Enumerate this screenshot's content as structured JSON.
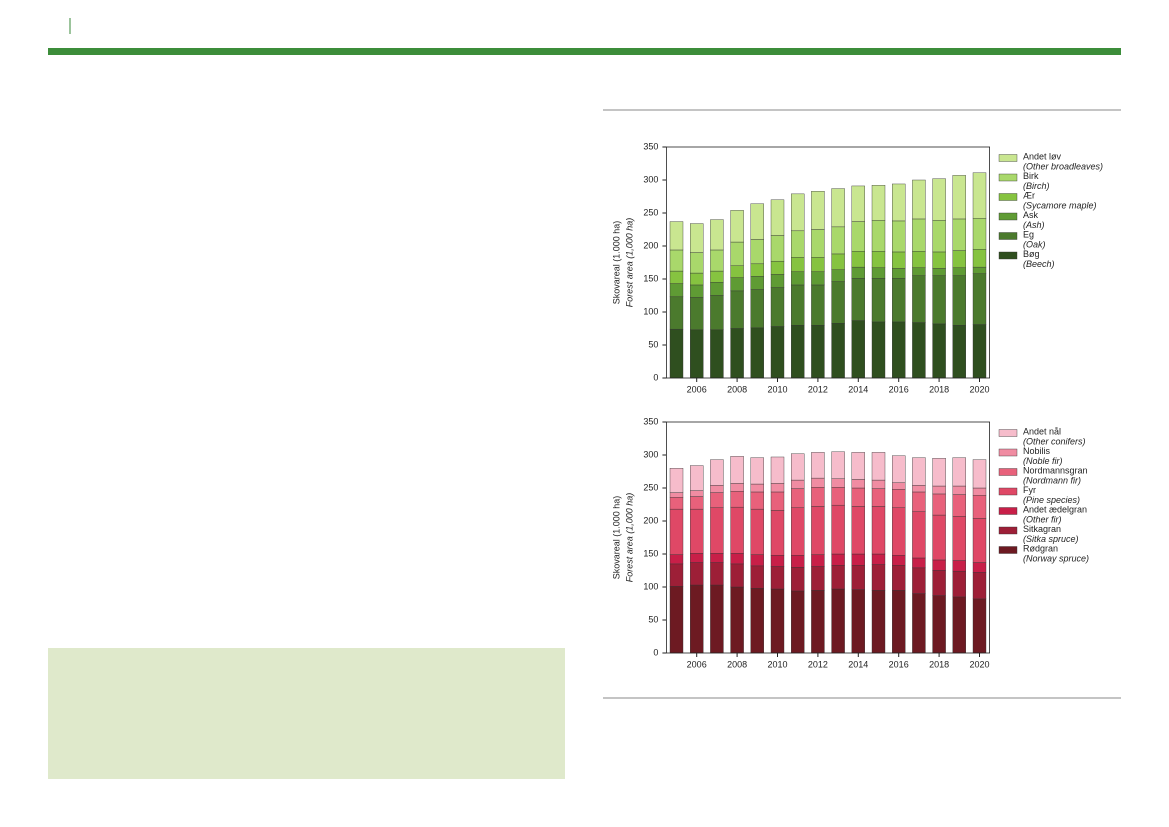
{
  "chart_data": [
    {
      "type": "stacked-bar",
      "ylabel": "Skovareal (1.000 ha)",
      "ylabel_en": "Forest area (1,000 ha)",
      "categories": [
        null,
        "2006",
        null,
        "2008",
        null,
        "2010",
        null,
        "2012",
        null,
        "2014",
        null,
        "2016",
        null,
        "2018",
        null,
        "2020"
      ],
      "ylim": [
        0,
        350
      ],
      "yticks": [
        0,
        50,
        100,
        150,
        200,
        250,
        300,
        350
      ],
      "series": [
        {
          "name": "Bøg",
          "name_en": "(Beech)",
          "color": "#2f4f1f",
          "values": [
            74,
            73,
            73,
            75,
            76,
            78,
            80,
            80,
            83,
            87,
            85,
            85,
            84,
            82,
            80,
            81
          ]
        },
        {
          "name": "Eg",
          "name_en": "(Oak)",
          "color": "#4b7a2d",
          "values": [
            49,
            49,
            52,
            57,
            58,
            59,
            61,
            61,
            63,
            64,
            66,
            66,
            71,
            73,
            75,
            77
          ]
        },
        {
          "name": "Ask",
          "name_en": "(Ash)",
          "color": "#5f9b34",
          "values": [
            20,
            19,
            20,
            20,
            20,
            20,
            20,
            20,
            18,
            17,
            16,
            15,
            12,
            11,
            12,
            10
          ]
        },
        {
          "name": "Ær",
          "name_en": "(Sycamore maple)",
          "color": "#86c340",
          "values": [
            19,
            18,
            17,
            18,
            19,
            20,
            22,
            22,
            24,
            24,
            25,
            25,
            25,
            25,
            26,
            27
          ]
        },
        {
          "name": "Birk",
          "name_en": "(Birch)",
          "color": "#a9d86b",
          "values": [
            32,
            31,
            32,
            36,
            37,
            39,
            40,
            42,
            41,
            45,
            47,
            47,
            49,
            48,
            48,
            47
          ]
        },
        {
          "name": "Andet løv",
          "name_en": "(Other broadleaves)",
          "color": "#c9e690",
          "values": [
            43,
            44,
            46,
            48,
            54,
            54,
            56,
            58,
            58,
            54,
            53,
            56,
            59,
            63,
            66,
            69
          ]
        }
      ]
    },
    {
      "type": "stacked-bar",
      "ylabel": "Skovareal (1.000 ha)",
      "ylabel_en": "Forest area (1,000 ha)",
      "categories": [
        null,
        "2006",
        null,
        "2008",
        null,
        "2010",
        null,
        "2012",
        null,
        "2014",
        null,
        "2016",
        null,
        "2018",
        null,
        "2020"
      ],
      "ylim": [
        0,
        350
      ],
      "yticks": [
        0,
        50,
        100,
        150,
        200,
        250,
        300,
        350
      ],
      "series": [
        {
          "name": "Rødgran",
          "name_en": "(Norway spruce)",
          "color": "#6d1a22",
          "values": [
            101,
            103,
            103,
            100,
            98,
            97,
            94,
            95,
            97,
            96,
            95,
            95,
            90,
            87,
            85,
            82
          ]
        },
        {
          "name": "Sitkagran",
          "name_en": "(Sitka spruce)",
          "color": "#9d1f37",
          "values": [
            34,
            34,
            34,
            35,
            34,
            34,
            36,
            36,
            36,
            37,
            39,
            38,
            39,
            38,
            39,
            40
          ]
        },
        {
          "name": "Andet ædelgran",
          "name_en": "(Other fir)",
          "color": "#c81f48",
          "values": [
            14,
            14,
            14,
            16,
            17,
            17,
            18,
            18,
            17,
            17,
            16,
            15,
            15,
            16,
            16,
            15
          ]
        },
        {
          "name": "Fyr",
          "name_en": "(Pine species)",
          "color": "#df4866",
          "values": [
            69,
            67,
            69,
            70,
            69,
            68,
            72,
            73,
            74,
            72,
            72,
            72,
            70,
            68,
            67,
            67
          ]
        },
        {
          "name": "Nordmannsgran",
          "name_en": "(Nordmann fir)",
          "color": "#e8617b",
          "values": [
            18,
            19,
            23,
            24,
            26,
            28,
            29,
            29,
            27,
            28,
            27,
            28,
            30,
            32,
            33,
            35
          ]
        },
        {
          "name": "Nobilis",
          "name_en": "(Noble fir)",
          "color": "#f08ca2",
          "values": [
            7,
            9,
            11,
            12,
            12,
            13,
            13,
            14,
            13,
            13,
            13,
            10,
            10,
            12,
            13,
            11
          ]
        },
        {
          "name": "Andet nål",
          "name_en": "(Other conifers)",
          "color": "#f6bccb",
          "values": [
            37,
            38,
            39,
            41,
            40,
            40,
            40,
            39,
            41,
            41,
            42,
            41,
            42,
            42,
            43,
            43
          ]
        }
      ]
    }
  ]
}
